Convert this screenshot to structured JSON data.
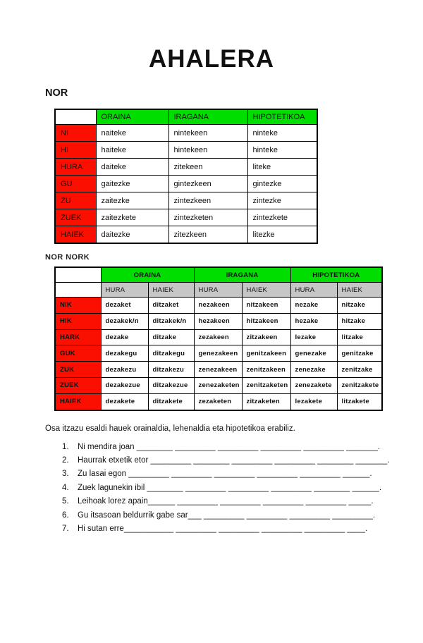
{
  "title": "AHALERA",
  "colors": {
    "header_green": "#00de00",
    "row_red": "#fa0f00",
    "subheader_gray": "#c6c6c6",
    "border": "#000000"
  },
  "nor_table": {
    "section_label": "NOR",
    "headers": [
      "ORAINA",
      "IRAGANA",
      "HIPOTETIKOA"
    ],
    "rows": [
      {
        "label": "NI",
        "cells": [
          "naiteke",
          "nintekeen",
          "ninteke"
        ]
      },
      {
        "label": "HI",
        "cells": [
          "haiteke",
          "hintekeen",
          "hinteke"
        ]
      },
      {
        "label": "HURA",
        "cells": [
          "daiteke",
          "zitekeen",
          "liteke"
        ]
      },
      {
        "label": "GU",
        "cells": [
          "gaitezke",
          "gintezkeen",
          "gintezke"
        ]
      },
      {
        "label": "ZU",
        "cells": [
          "zaitezke",
          "zintezkeen",
          "zintezke"
        ]
      },
      {
        "label": "ZUEK",
        "cells": [
          "zaitezkete",
          "zintezketen",
          "zintezkete"
        ]
      },
      {
        "label": "HAIEK",
        "cells": [
          "daitezke",
          "zitezkeen",
          "litezke"
        ]
      }
    ]
  },
  "nor_nork_table": {
    "section_label": "NOR NORK",
    "group_headers": [
      "ORAINA",
      "IRAGANA",
      "HIPOTETIKOA"
    ],
    "sub_headers": [
      "HURA",
      "HAIEK",
      "HURA",
      "HAIEK",
      "HURA",
      "HAIEK"
    ],
    "rows": [
      {
        "label": "NIK",
        "cells": [
          "dezaket",
          "ditzaket",
          "nezakeen",
          "nitzakeen",
          "nezake",
          "nitzake"
        ]
      },
      {
        "label": "HIK",
        "cells": [
          "dezakek/n",
          "ditzakek/n",
          "hezakeen",
          "hitzakeen",
          "hezake",
          "hitzake"
        ]
      },
      {
        "label": "HARK",
        "cells": [
          "dezake",
          "ditzake",
          "zezakeen",
          "zitzakeen",
          "lezake",
          "litzake"
        ]
      },
      {
        "label": "GUK",
        "cells": [
          "dezakegu",
          "ditzakegu",
          "genezakeen",
          "genitzakeen",
          "genezake",
          "genitzake"
        ]
      },
      {
        "label": "ZUK",
        "cells": [
          "dezakezu",
          "ditzakezu",
          "zenezakeen",
          "zenitzakeen",
          "zenezake",
          "zenitzake"
        ]
      },
      {
        "label": "ZUEK",
        "cells": [
          "dezakezue",
          "ditzakezue",
          "zenezaketen",
          "zenitzaketen",
          "zenezakete",
          "zenitzakete"
        ]
      },
      {
        "label": "HAIEK",
        "cells": [
          "dezakete",
          "ditzakete",
          "zezaketen",
          "zitzaketen",
          "lezakete",
          "litzakete"
        ]
      }
    ]
  },
  "exercise": {
    "instruction": "Osa itzazu esaldi hauek orainaldia, lehenaldia eta hipotetikoa erabiliz.",
    "items": [
      {
        "number": "1.",
        "text": "Ni mendira joan",
        "blank": " ________ _________ _________ _________ _________ _______."
      },
      {
        "number": "2.",
        "text": "Haurrak etxetik etor",
        "blank": " _________ ________ _________ _________ ________ _______."
      },
      {
        "number": "3.",
        "text": "Zu lasai egon",
        "blank": " _________ _________ _________ _________ _________ ______."
      },
      {
        "number": "4.",
        "text": "Zuek lagunekin ibil",
        "blank": " ________ _________ _________ _________ ________ ______."
      },
      {
        "number": "5.",
        "text": "Leihoak lorez apain",
        "blank": "______ _________ _________ _________ _________ _____."
      },
      {
        "number": "6.",
        "text": "Gu itsasoan beldurrik gabe sar",
        "blank": "___ _________ _________ _________ _________."
      },
      {
        "number": "7.",
        "text": "Hi sutan erre",
        "blank": "___________ _________ _________ _________ _________ ____."
      }
    ]
  }
}
